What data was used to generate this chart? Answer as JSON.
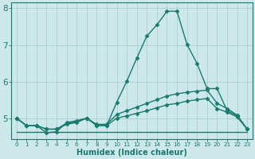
{
  "title": "",
  "xlabel": "Humidex (Indice chaleur)",
  "bg_color": "#cce8ea",
  "line_color": "#1a7a6e",
  "grid_color": "#aacfcf",
  "xlim": [
    -0.5,
    23.5
  ],
  "ylim": [
    4.45,
    8.15
  ],
  "xticks": [
    0,
    1,
    2,
    3,
    4,
    5,
    6,
    7,
    8,
    9,
    10,
    11,
    12,
    13,
    14,
    15,
    16,
    17,
    18,
    19,
    20,
    21,
    22,
    23
  ],
  "yticks": [
    5,
    6,
    7,
    8
  ],
  "lines": [
    {
      "x": [
        0,
        1,
        2,
        3,
        4,
        5,
        6,
        7,
        8,
        9,
        10,
        11,
        12,
        13,
        14,
        15,
        16,
        17,
        18,
        19,
        20,
        21,
        22,
        23
      ],
      "y": [
        5.02,
        4.82,
        4.82,
        4.62,
        4.65,
        4.9,
        4.95,
        5.02,
        4.82,
        4.82,
        5.45,
        6.02,
        6.65,
        7.25,
        7.55,
        7.92,
        7.92,
        7.02,
        6.5,
        5.82,
        5.82,
        5.22,
        5.08,
        4.72
      ],
      "has_marker": true
    },
    {
      "x": [
        0,
        1,
        2,
        3,
        4,
        5,
        6,
        7,
        8,
        9,
        10,
        11,
        12,
        13,
        14,
        15,
        16,
        17,
        18,
        19,
        20,
        21,
        22,
        23
      ],
      "y": [
        5.02,
        4.82,
        4.82,
        4.72,
        4.72,
        4.88,
        4.92,
        5.02,
        4.85,
        4.85,
        5.12,
        5.22,
        5.32,
        5.42,
        5.52,
        5.62,
        5.68,
        5.72,
        5.75,
        5.78,
        5.42,
        5.28,
        5.1,
        4.72
      ],
      "has_marker": true
    },
    {
      "x": [
        0,
        1,
        2,
        3,
        4,
        5,
        6,
        7,
        8,
        9,
        10,
        11,
        12,
        13,
        14,
        15,
        16,
        17,
        18,
        19,
        20,
        21,
        22,
        23
      ],
      "y": [
        5.02,
        4.82,
        4.82,
        4.72,
        4.72,
        4.85,
        4.9,
        5.02,
        4.82,
        4.82,
        5.02,
        5.08,
        5.15,
        5.22,
        5.3,
        5.38,
        5.42,
        5.48,
        5.52,
        5.55,
        5.28,
        5.18,
        5.05,
        4.72
      ],
      "has_marker": true
    },
    {
      "x": [
        0,
        3,
        9,
        23
      ],
      "y": [
        4.65,
        4.65,
        4.65,
        4.65
      ],
      "has_marker": false
    }
  ],
  "marker": "D",
  "markersize": 2.5,
  "linewidth": 1.0
}
